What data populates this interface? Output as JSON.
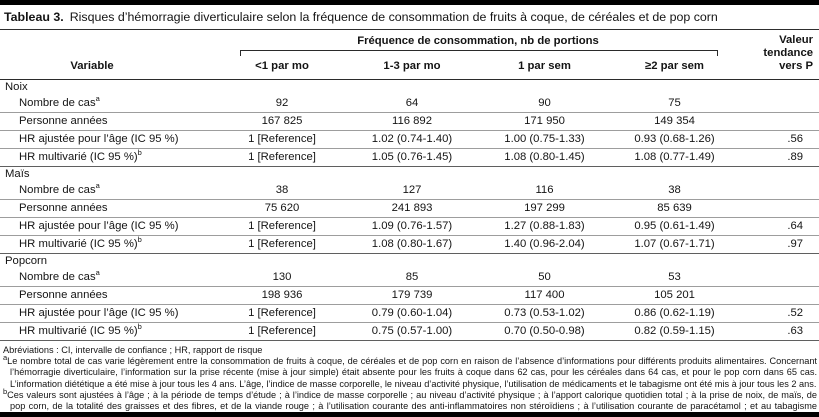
{
  "title": {
    "label": "Tableau 3.",
    "text": "Risques d’hémorragie diverticulaire selon la fréquence de consommation de fruits à coque, de céréales et de pop corn"
  },
  "header": {
    "span_header": "Fréquence de consommation, nb de portions",
    "variable_label": "Variable",
    "columns": [
      "<1 par mo",
      "1-3 par mo",
      "1 par sem",
      "≥2 par sem"
    ],
    "p_header_lines": [
      "Valeur",
      "tendance",
      "vers P"
    ]
  },
  "table": {
    "sections": [
      {
        "name": "Noix",
        "rows": [
          {
            "label": "Nombre de cas",
            "sup": "a",
            "values": [
              "92",
              "64",
              "90",
              "75"
            ],
            "p": ""
          },
          {
            "label": "Personne années",
            "sup": "",
            "values": [
              "167 825",
              "116 892",
              "171 950",
              "149 354"
            ],
            "p": ""
          },
          {
            "label": "HR ajustée pour l’âge (IC 95 %)",
            "sup": "",
            "values": [
              "1 [Reference]",
              "1.02 (0.74-1.40)",
              "1.00 (0.75-1.33)",
              "0.93 (0.68-1.26)"
            ],
            "p": ".56"
          },
          {
            "label": "HR multivarié (IC 95 %)",
            "sup": "b",
            "values": [
              "1 [Reference]",
              "1.05 (0.76-1.45)",
              "1.08 (0.80-1.45)",
              "1.08 (0.77-1.49)"
            ],
            "p": ".89"
          }
        ]
      },
      {
        "name": "Maïs",
        "rows": [
          {
            "label": "Nombre de cas",
            "sup": "a",
            "values": [
              "38",
              "127",
              "116",
              "38"
            ],
            "p": ""
          },
          {
            "label": "Personne années",
            "sup": "",
            "values": [
              "75 620",
              "241 893",
              "197 299",
              "85 639"
            ],
            "p": ""
          },
          {
            "label": "HR ajustée pour l’âge (IC 95 %)",
            "sup": "",
            "values": [
              "1 [Reference]",
              "1.09 (0.76-1.57)",
              "1.27 (0.88-1.83)",
              "0.95 (0.61-1.49)"
            ],
            "p": ".64"
          },
          {
            "label": "HR multivarié (IC 95 %)",
            "sup": "b",
            "values": [
              "1 [Reference]",
              "1.08 (0.80-1.67)",
              "1.40 (0.96-2.04)",
              "1.07 (0.67-1.71)"
            ],
            "p": ".97"
          }
        ]
      },
      {
        "name": "Popcorn",
        "rows": [
          {
            "label": "Nombre de cas",
            "sup": "a",
            "values": [
              "130",
              "85",
              "50",
              "53"
            ],
            "p": ""
          },
          {
            "label": "Personne années",
            "sup": "",
            "values": [
              "198 936",
              "179 739",
              "117 400",
              "105 201"
            ],
            "p": ""
          },
          {
            "label": "HR ajustée pour l’âge (IC 95 %)",
            "sup": "",
            "values": [
              "1 [Reference]",
              "0.79 (0.60-1.04)",
              "0.73 (0.53-1.02)",
              "0.86 (0.62-1.19)"
            ],
            "p": ".52"
          },
          {
            "label": "HR multivarié (IC 95 %)",
            "sup": "b",
            "values": [
              "1 [Reference]",
              "0.75 (0.57-1.00)",
              "0.70 (0.50-0.98)",
              "0.82 (0.59-1.15)"
            ],
            "p": ".63"
          }
        ]
      }
    ]
  },
  "footnotes": {
    "abbreviations": "Abréviations : CI, intervalle de confiance ; HR, rapport de risque",
    "notes": [
      {
        "sup": "a",
        "text": "Le nombre total de cas varie légèrement entre la consommation de fruits à coque, de céréales et de pop corn en raison de l’absence d’informations pour différents produits alimentaires. Concernant l’hémorragie diverticulaire, l’information sur la prise récente (mise à jour simple) était absente pour les fruits à coque dans 62 cas, pour les céréales dans 64 cas, et pour le pop corn dans 65 cas. L’information diététique a été mise à jour tous les 4 ans. L’âge, l’indice de masse corporelle, le niveau d’activité physique, l’utilisation de médicaments et le tabagisme ont été mis à jour tous les 2 ans."
      },
      {
        "sup": "b",
        "text": "Ces valeurs sont ajustées à l’âge ; à la période de temps d’étude ; à l’indice de masse corporelle ; au niveau d’activité physique ; à l’apport calorique quotidien total ; à la prise de noix, de maïs, de pop corn, de la totalité des graisses et des fibres, et de la viande rouge ; à l’utilisation courante des anti-inflammatoires non stéroïdiens ; à l’utilisation courante de paracétamol ; et au tabagisme courant."
      }
    ]
  }
}
